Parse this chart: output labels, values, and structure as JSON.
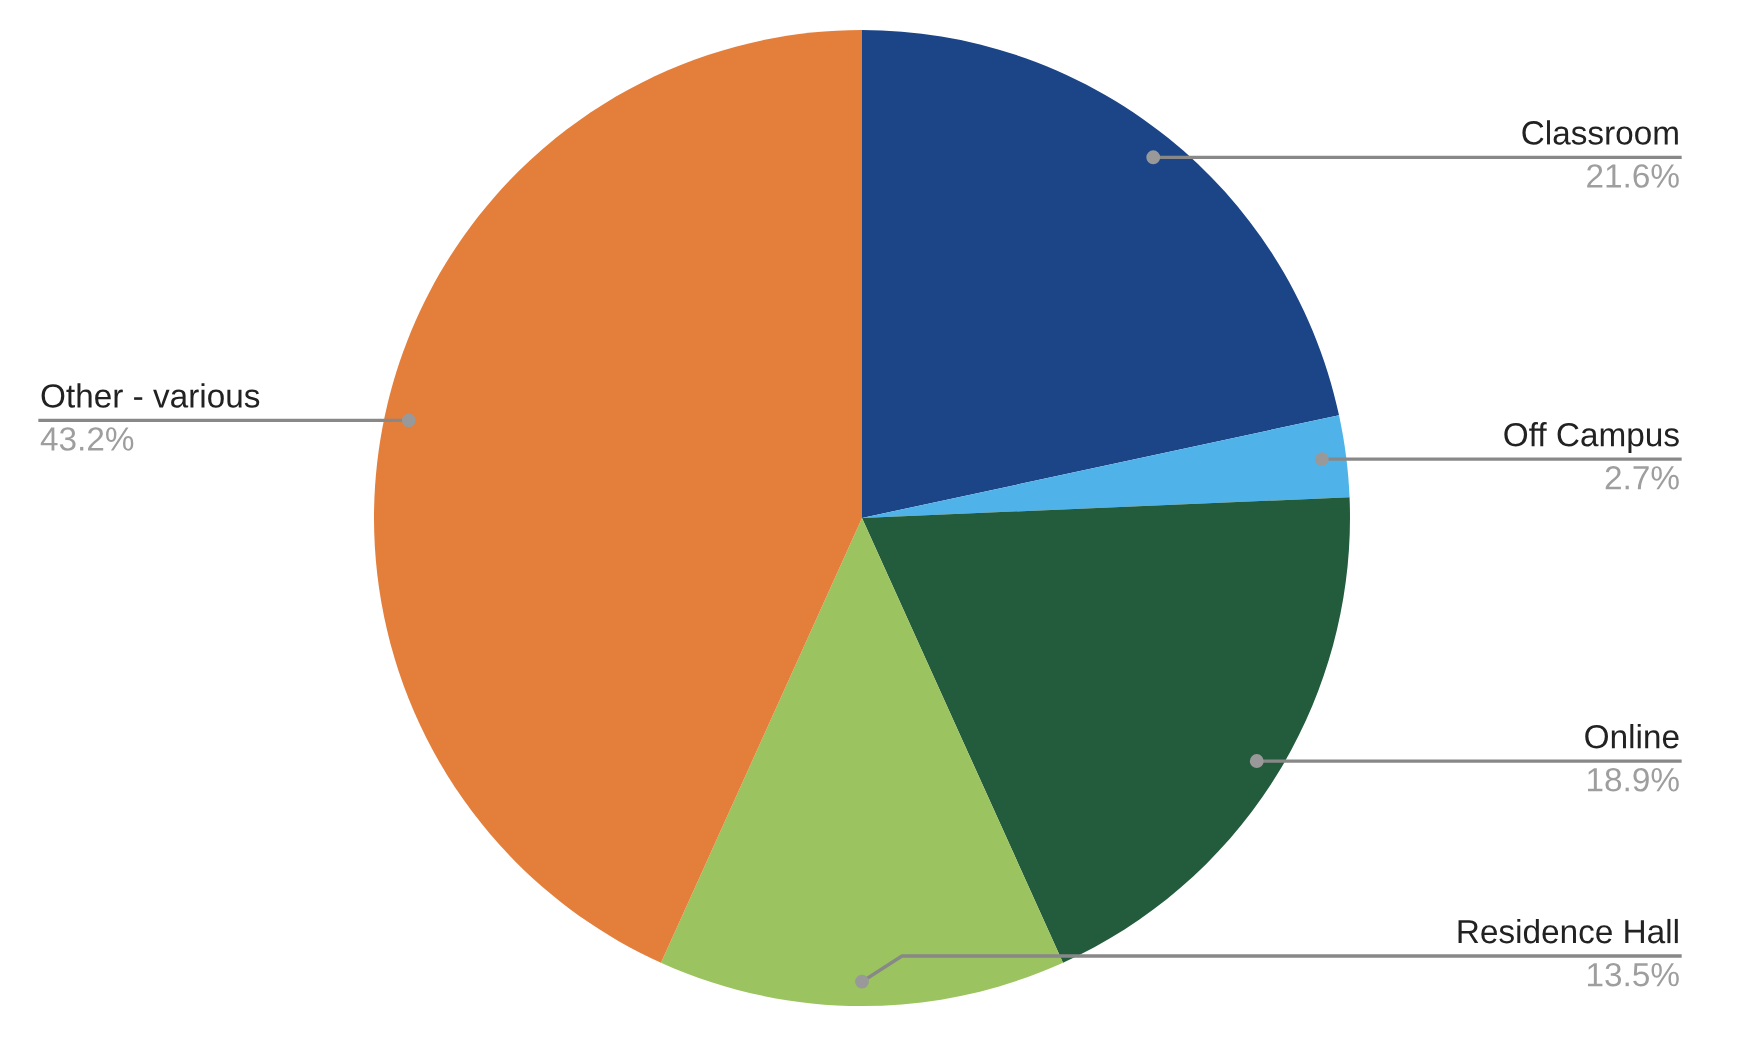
{
  "chart_data": {
    "type": "pie",
    "categories": [
      "Classroom",
      "Off Campus",
      "Online",
      "Residence Hall",
      "Other - various"
    ],
    "values": [
      21.6,
      2.7,
      18.9,
      13.5,
      43.2
    ],
    "colors": [
      "#1c4587",
      "#4fb3ea",
      "#235c3c",
      "#9bc35f",
      "#e47e3b"
    ],
    "value_labels": [
      "21.6%",
      "2.7%",
      "18.9%",
      "13.5%",
      "43.2%"
    ],
    "legend": false
  }
}
